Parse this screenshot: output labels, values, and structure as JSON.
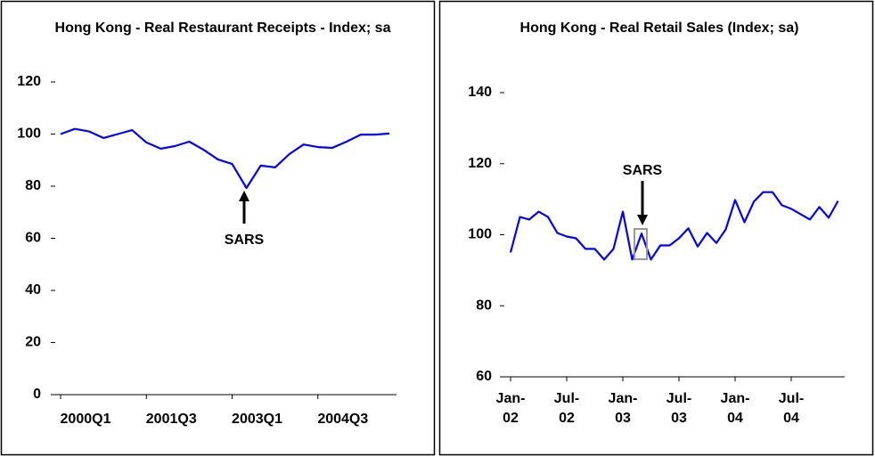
{
  "chart_data": [
    {
      "type": "line",
      "title": "Hong Kong - Real Restaurant Receipts - Index; sa",
      "categories": [
        "2000Q1",
        null,
        null,
        null,
        null,
        null,
        "2001Q3",
        null,
        null,
        null,
        null,
        null,
        "2003Q1",
        null,
        null,
        null,
        null,
        null,
        "2004Q3",
        null,
        null,
        null,
        null,
        null
      ],
      "series": [
        {
          "color": "#0000ff",
          "values": [
            100,
            102,
            101,
            98.5,
            100,
            101.5,
            96.8,
            94.4,
            95.4,
            97.1,
            94,
            90.3,
            88.5,
            79.3,
            87.9,
            87.2,
            92.3,
            96,
            95,
            94.7,
            97.1,
            99.8,
            99.8,
            100.2
          ]
        }
      ],
      "ylim": [
        0,
        120
      ],
      "yticks": [
        0,
        20,
        40,
        60,
        80,
        100,
        120
      ],
      "grid": false,
      "annotation": "SARS"
    },
    {
      "type": "line",
      "title": "Hong Kong - Real Retail Sales (Index; sa)",
      "categories": [
        "Jan-02",
        null,
        null,
        null,
        null,
        null,
        "Jul-02",
        null,
        null,
        null,
        null,
        null,
        "Jan-03",
        null,
        null,
        null,
        null,
        null,
        "Jul-03",
        null,
        null,
        null,
        null,
        null,
        "Jan-04",
        null,
        null,
        null,
        null,
        null,
        "Jul-04",
        null,
        null,
        null,
        null,
        null
      ],
      "series": [
        {
          "color": "#0000ff",
          "values": [
            95,
            105,
            104.3,
            106.5,
            105,
            100.5,
            99.5,
            99,
            96,
            96,
            93,
            96,
            106.5,
            93,
            100.3,
            93,
            97,
            97,
            99,
            101.8,
            96.7,
            100.5,
            97.7,
            101.5,
            109.8,
            103.5,
            109.3,
            112,
            112,
            108.3,
            107.3,
            105.8,
            104.3,
            107.8,
            104.8,
            109.5
          ]
        }
      ],
      "ylim": [
        60,
        140
      ],
      "yticks": [
        60,
        80,
        100,
        120,
        140
      ],
      "grid": false,
      "annotation": "SARS"
    }
  ]
}
